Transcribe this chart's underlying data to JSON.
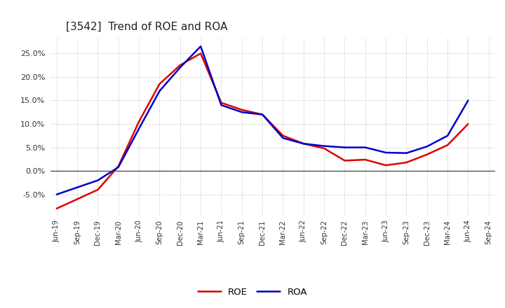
{
  "title": "[3542]  Trend of ROE and ROA",
  "title_fontsize": 11,
  "background_color": "#ffffff",
  "plot_bg_color": "#ffffff",
  "grid_color": "#bbbbbb",
  "roe_color": "#dd0000",
  "roa_color": "#0000cc",
  "line_width": 1.8,
  "dates": [
    "Jun-19",
    "Sep-19",
    "Dec-19",
    "Mar-20",
    "Jun-20",
    "Sep-20",
    "Dec-20",
    "Mar-21",
    "Jun-21",
    "Sep-21",
    "Dec-21",
    "Mar-22",
    "Jun-22",
    "Sep-22",
    "Dec-22",
    "Mar-23",
    "Jun-23",
    "Sep-23",
    "Dec-23",
    "Mar-24",
    "Jun-24",
    "Sep-24"
  ],
  "roe_values": [
    -8.0,
    -6.0,
    -4.0,
    1.0,
    10.5,
    18.5,
    22.5,
    25.0,
    14.5,
    13.0,
    12.0,
    7.5,
    5.8,
    4.8,
    2.2,
    2.4,
    1.2,
    1.8,
    3.5,
    5.5,
    10.0,
    null
  ],
  "roa_values": [
    -5.0,
    -3.5,
    -2.0,
    0.8,
    9.0,
    17.0,
    22.0,
    26.5,
    14.0,
    12.5,
    12.0,
    7.0,
    5.8,
    5.3,
    5.0,
    5.0,
    3.9,
    3.8,
    5.2,
    7.5,
    15.0,
    null
  ],
  "ylim": [
    -9.5,
    28.5
  ],
  "yticks": [
    -5.0,
    0.0,
    5.0,
    10.0,
    15.0,
    20.0,
    25.0
  ],
  "legend_roe": "ROE",
  "legend_roa": "ROA"
}
